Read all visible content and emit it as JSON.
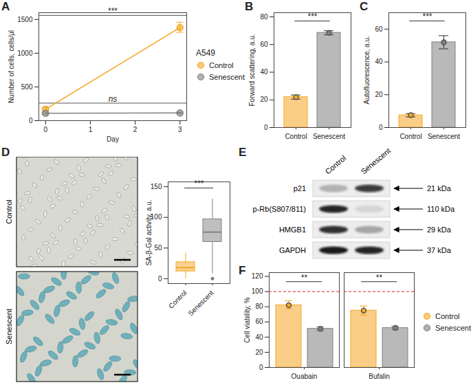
{
  "chart_data": [
    {
      "title": "A",
      "type": "line",
      "legend_title": "A549",
      "legend": "right",
      "marker": "circle",
      "x": [
        0,
        3
      ],
      "xlim": [
        -0.15,
        3.15
      ],
      "xticks": [
        0,
        1,
        2,
        3
      ],
      "x_label": "Day",
      "ylim": [
        0,
        1600
      ],
      "yticks": [
        0,
        500,
        1000,
        1500
      ],
      "y_label": "Number of cells, cells/µl",
      "series": [
        {
          "name": "Control",
          "color": "#F5A623",
          "values": [
            170,
            1380
          ],
          "error_low": [
            150,
            1310
          ],
          "error_high": [
            195,
            1460
          ]
        },
        {
          "name": "Senescent",
          "color": "#808080",
          "values": [
            110,
            115
          ],
          "error_low": [
            95,
            105
          ],
          "error_high": [
            125,
            125
          ]
        }
      ],
      "annotations": [
        {
          "text": "***",
          "y": 1560
        },
        {
          "text": "ns",
          "y": 260
        }
      ]
    },
    {
      "title": "B",
      "type": "bar",
      "marker": "circle",
      "categories": [
        "Control",
        "Senescent"
      ],
      "values": [
        22,
        68.5
      ],
      "error_low": [
        20.5,
        67
      ],
      "error_high": [
        23.5,
        70
      ],
      "colors": [
        "#F5A623",
        "#808080"
      ],
      "ylim": [
        0,
        83
      ],
      "yticks": [
        0,
        20,
        40,
        60,
        80
      ],
      "y_label": "Forward scattering, a.u.",
      "annotations": [
        {
          "text": "***",
          "y": 77
        }
      ]
    },
    {
      "title": "C",
      "type": "bar",
      "marker": "circle",
      "categories": [
        "Control",
        "Senescent"
      ],
      "values": [
        7.5,
        52
      ],
      "error_low": [
        6.5,
        48
      ],
      "error_high": [
        8.5,
        56
      ],
      "colors": [
        "#F5A623",
        "#808080"
      ],
      "ylim": [
        0,
        70
      ],
      "yticks": [
        0,
        20,
        40,
        60
      ],
      "y_label": "Autofluorescence, a.u.",
      "annotations": [
        {
          "text": "***",
          "y": 65
        }
      ]
    },
    {
      "type": "box",
      "categories": [
        "Control",
        "Senescent"
      ],
      "boxes": [
        {
          "min": 0,
          "q1": 12,
          "median": 18,
          "q3": 27,
          "max": 42,
          "outliers": []
        },
        {
          "min": 8,
          "q1": 60,
          "median": 76,
          "q3": 97,
          "max": 130,
          "outliers": [
            0
          ]
        }
      ],
      "colors": [
        "#F5A623",
        "#808080"
      ],
      "ylim": [
        -8,
        158
      ],
      "yticks": [
        0,
        50,
        100,
        150
      ],
      "y_label": "SA-β-Gal activity, a.u.",
      "annotations": [
        {
          "text": "***",
          "y": 148
        }
      ]
    },
    {
      "title": "F",
      "type": "bar",
      "legend": "right",
      "marker": "circle",
      "categories": [
        "Ouabain",
        "Bufalin"
      ],
      "series": [
        {
          "name": "Control",
          "color": "#F5A623",
          "values": [
            82,
            75
          ],
          "error_low": [
            77,
            69
          ],
          "error_high": [
            88,
            81
          ]
        },
        {
          "name": "Senescent",
          "color": "#808080",
          "values": [
            51,
            52
          ],
          "error_low": [
            48.5,
            49.5
          ],
          "error_high": [
            53.5,
            54.5
          ]
        }
      ],
      "ylim": [
        0,
        125
      ],
      "yticks": [
        0,
        20,
        40,
        60,
        80,
        100,
        120
      ],
      "y_label": "Cell viability, %",
      "reference_line": {
        "y": 100,
        "color": "#E41A1C",
        "line_style": "dashed"
      },
      "annotations": [
        {
          "text": "**",
          "y": 113,
          "category": "Ouabain"
        },
        {
          "text": "**",
          "y": 113,
          "category": "Bufalin"
        }
      ]
    }
  ],
  "micrographs": {
    "title": "D",
    "rows": [
      "Control",
      "Senescent"
    ]
  },
  "western_blot": {
    "title": "E",
    "lanes": [
      "Control",
      "Senescent"
    ],
    "rows": [
      {
        "label": "p21",
        "size": "21 kDa",
        "intensity": [
          0.25,
          0.8
        ]
      },
      {
        "label": "p-Rb(S807/811)",
        "size": "110 kDa",
        "intensity": [
          0.9,
          0.1
        ]
      },
      {
        "label": "HMGB1",
        "size": "29 kDa",
        "intensity": [
          0.85,
          0.3
        ]
      },
      {
        "label": "GAPDH",
        "size": "37 kDa",
        "intensity": [
          0.95,
          0.9
        ]
      }
    ]
  }
}
